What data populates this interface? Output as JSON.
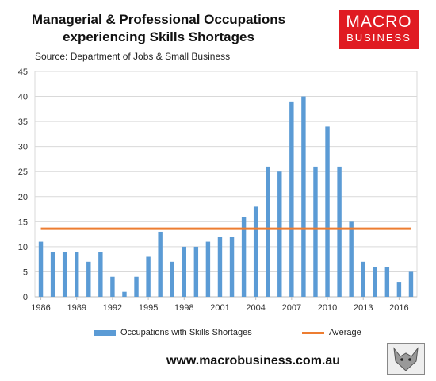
{
  "header": {
    "title_line1": "Managerial & Professional Occupations",
    "title_line2": "experiencing Skills Shortages",
    "source": "Source: Department of Jobs & Small Business"
  },
  "logo": {
    "line1": "MACRO",
    "line2": "BUSINESS",
    "color": "#e01b22"
  },
  "footer": {
    "url": "www.macrobusiness.com.au"
  },
  "colors": {
    "bars": "#5b9bd5",
    "average": "#ed7d31",
    "grid": "#d9d9d9"
  },
  "chart_data": {
    "type": "bar",
    "x": [
      1986,
      1987,
      1988,
      1989,
      1990,
      1991,
      1992,
      1993,
      1994,
      1995,
      1996,
      1997,
      1998,
      1999,
      2000,
      2001,
      2002,
      2003,
      2004,
      2005,
      2006,
      2007,
      2008,
      2009,
      2010,
      2011,
      2012,
      2013,
      2014,
      2015,
      2016,
      2017
    ],
    "series": [
      {
        "name": "Occupations with Skills Shortages",
        "type": "bar",
        "values": [
          11,
          9,
          9,
          9,
          7,
          9,
          4,
          1,
          4,
          8,
          13,
          7,
          10,
          10,
          11,
          12,
          12,
          16,
          18,
          26,
          25,
          39,
          40,
          26,
          34,
          26,
          15,
          7,
          6,
          6,
          3,
          5
        ]
      },
      {
        "name": "Average",
        "type": "line",
        "value": 13.6
      }
    ],
    "x_tick_labels": [
      "1986",
      "1989",
      "1992",
      "1995",
      "1998",
      "2001",
      "2004",
      "2007",
      "2010",
      "2013",
      "2016"
    ],
    "y_tick_labels": [
      "0",
      "5",
      "10",
      "15",
      "20",
      "25",
      "30",
      "35",
      "40",
      "45"
    ],
    "ylim": [
      0,
      45
    ],
    "grid": "horizontal",
    "legend": "bottom"
  }
}
